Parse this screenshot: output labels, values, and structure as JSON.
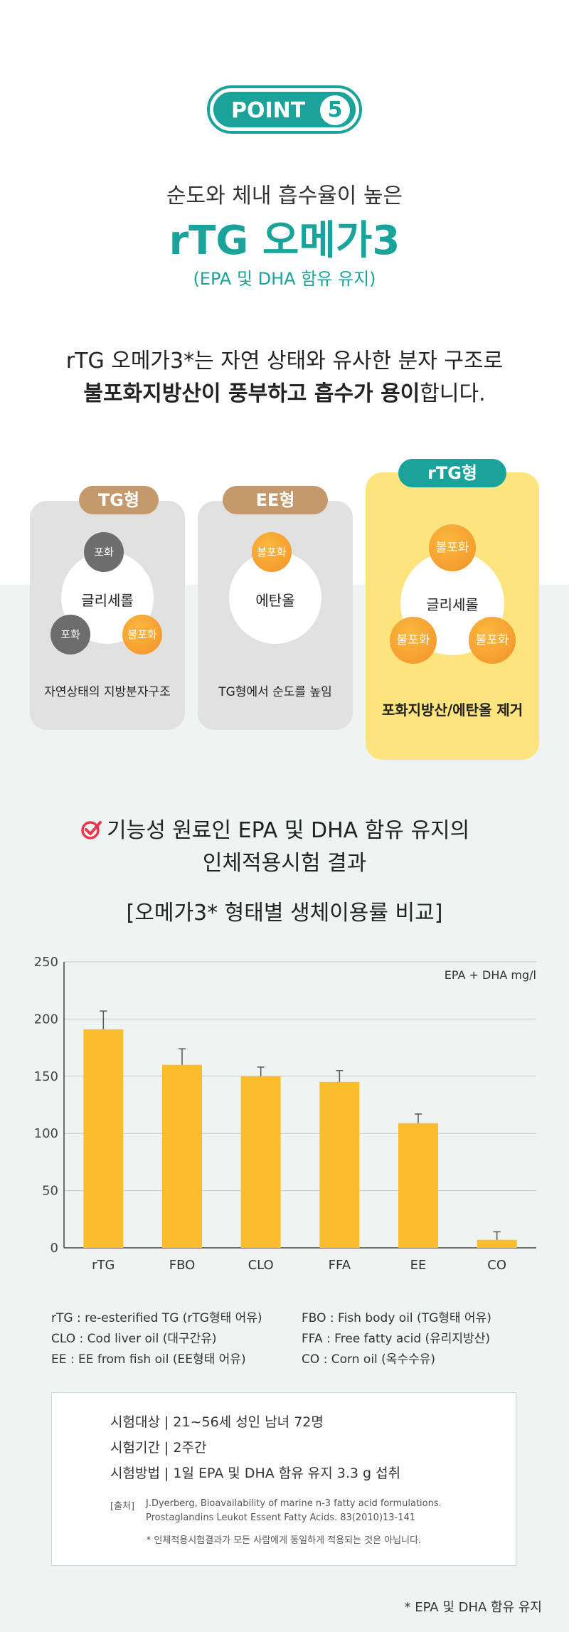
{
  "badge": {
    "label": "POINT",
    "number": "5"
  },
  "heading": {
    "subtitle": "순도와 체내 흡수율이 높은",
    "title": "rTG 오메가3",
    "paren": "(EPA 및 DHA 함유 유지)"
  },
  "description": {
    "line1": "rTG 오메가3*는 자연 상태와 유사한 분자 구조로",
    "line2_bold": "불포화지방산이 풍부하고 흡수가 용이",
    "line2_rest": "합니다."
  },
  "cards": {
    "tg": {
      "pill": "TG형",
      "center": "글리세롤",
      "mol1": "포화",
      "mol2": "포화",
      "mol3": "불포화",
      "caption": "자연상태의 지방분자구조"
    },
    "ee": {
      "pill": "EE형",
      "center": "에탄올",
      "mol1": "불포화",
      "caption": "TG형에서 순도를 높임"
    },
    "rtg": {
      "pill": "rTG형",
      "center": "글리세롤",
      "mol1": "불포화",
      "mol2": "불포화",
      "mol3": "불포화",
      "caption": "포화지방산/에탄올 제거"
    }
  },
  "section2": {
    "title_line1": "기능성 원료인 EPA 및 DHA 함유 유지의",
    "title_line2": "인체적용시험 결과",
    "chart_heading": "[오메가3* 형태별 생체이용률 비교]"
  },
  "chart_data": {
    "type": "bar",
    "categories": [
      "rTG",
      "FBO",
      "CLO",
      "FFA",
      "EE",
      "CO"
    ],
    "values": [
      191,
      160,
      150,
      145,
      109,
      7
    ],
    "errors": [
      16,
      14,
      8,
      10,
      8,
      7
    ],
    "ylim": [
      0,
      250
    ],
    "yticks": [
      0,
      50,
      100,
      150,
      200,
      250
    ],
    "unit_label": "EPA + DHA mg/l",
    "bar_color": "#fbbd2b",
    "grid": true
  },
  "legend": {
    "left": [
      "rTG : re-esterified TG (rTG형태 어유)",
      "CLO : Cod liver oil (대구간유)",
      "EE : EE from fish oil (EE형태 어유)"
    ],
    "right": [
      "FBO : Fish body oil (TG형태 어유)",
      "FFA : Free fatty acid (유리지방산)",
      "CO : Corn oil (옥수수유)"
    ]
  },
  "info": {
    "rows": [
      "시험대상 | 21~56세 성인 남녀 72명",
      "시험기간 | 2주간",
      "시험방법 | 1일 EPA 및 DHA 함유 유지 3.3 g 섭취"
    ],
    "source_label": "[출처]",
    "source_line1": "J.Dyerberg, Bioavailability of marine n-3 fatty acid formulations.",
    "source_line2": "Prostaglandins Leukot Essent Fatty Acids. 83(2010)13-141",
    "disclaimer": "* 인체적용시험결과가 모든 사람에게 동일하게 적용되는 것은 아닙니다."
  },
  "footnote": "* EPA 및 DHA 함유 유지",
  "colors": {
    "teal": "#1aa39a",
    "tan": "#c49a6c",
    "yellow_card": "#fde47f",
    "bar": "#fbbd2b",
    "check": "#e8384f"
  }
}
